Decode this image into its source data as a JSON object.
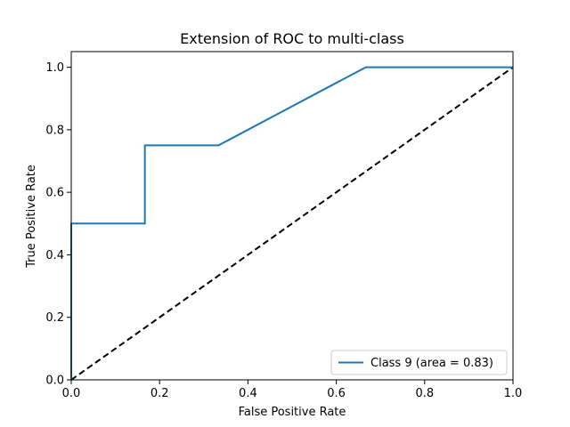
{
  "chart_data": {
    "type": "line",
    "title": "Extension of ROC to multi-class",
    "xlabel": "False Positive Rate",
    "ylabel": "True Positive Rate",
    "xlim": [
      0.0,
      1.0
    ],
    "ylim": [
      0.0,
      1.05
    ],
    "xticks": [
      0.0,
      0.2,
      0.4,
      0.6,
      0.8,
      1.0
    ],
    "yticks": [
      0.0,
      0.2,
      0.4,
      0.6,
      0.8,
      1.0
    ],
    "xtick_labels": [
      "0.0",
      "0.2",
      "0.4",
      "0.6",
      "0.8",
      "1.0"
    ],
    "ytick_labels": [
      "0.0",
      "0.2",
      "0.4",
      "0.6",
      "0.8",
      "1.0"
    ],
    "grid": false,
    "legend_position": "lower-right",
    "series": [
      {
        "name": "Class 9 (area = 0.83)",
        "color": "#1f77b4",
        "style": "solid",
        "x": [
          0.0,
          0.0,
          0.1667,
          0.1667,
          0.3333,
          0.6667,
          1.0
        ],
        "y": [
          0.0,
          0.5,
          0.5,
          0.75,
          0.75,
          1.0,
          1.0
        ]
      }
    ],
    "reference_line": {
      "color": "#000000",
      "style": "dashed",
      "x": [
        0.0,
        1.0
      ],
      "y": [
        0.0,
        1.0
      ]
    }
  }
}
